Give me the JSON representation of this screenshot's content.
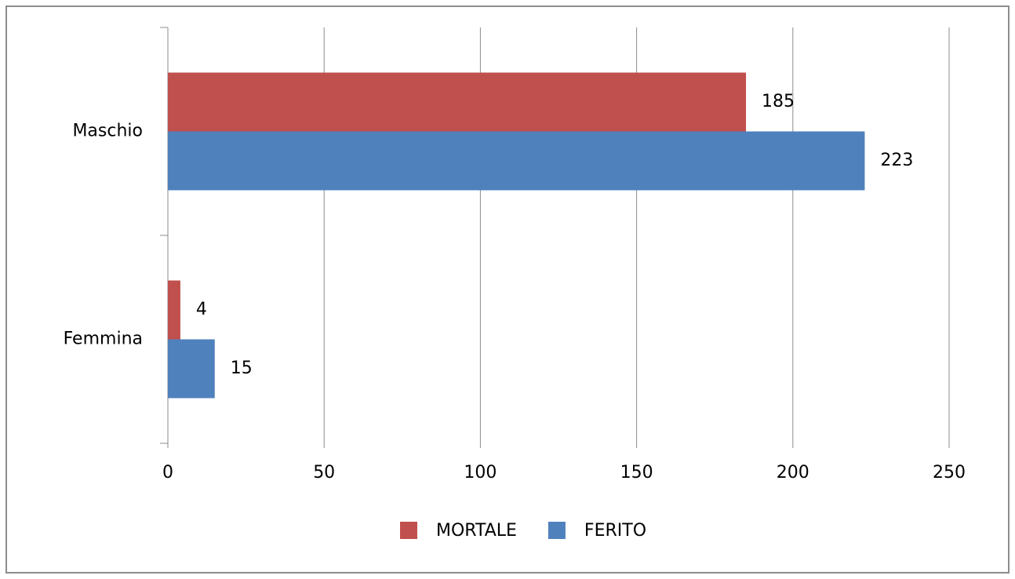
{
  "chart_data": {
    "type": "bar",
    "orientation": "horizontal",
    "categories": [
      "Maschio",
      "Femmina"
    ],
    "series": [
      {
        "name": "MORTALE",
        "color": "#c0504d",
        "values": [
          185,
          4
        ]
      },
      {
        "name": "FERITO",
        "color": "#4f81bd",
        "values": [
          223,
          15
        ]
      }
    ],
    "xlim": [
      0,
      250
    ],
    "xticks": [
      0,
      50,
      100,
      150,
      200,
      250
    ],
    "grid": true,
    "legend": "bottom"
  }
}
